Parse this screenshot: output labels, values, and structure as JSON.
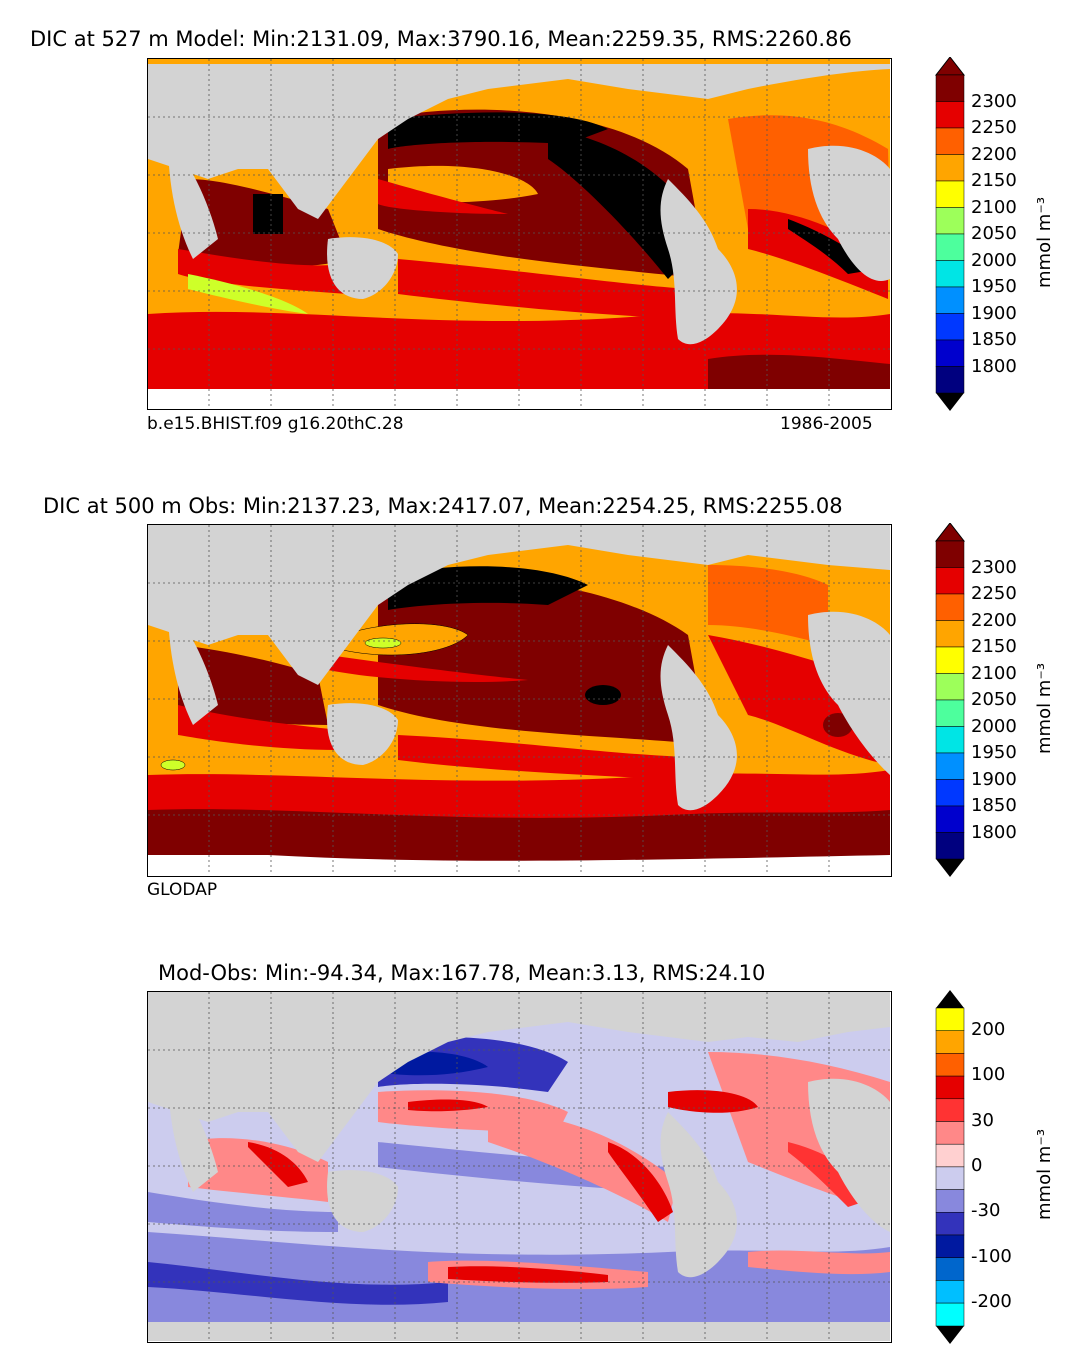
{
  "colors": {
    "land": "#d3d3d3",
    "ice": "#ffffff",
    "grid": "#555555",
    "dic_levels": [
      "#00007f",
      "#0000cd",
      "#0038ff",
      "#0090ff",
      "#00d4ff",
      "#29ffce",
      "#7dff7a",
      "#ceff29",
      "#ffd700",
      "#ffa500",
      "#ff6000",
      "#e50000",
      "#7f0000",
      "#000000"
    ],
    "diff_levels": [
      "#00ffff",
      "#00bfff",
      "#0066cc",
      "#0019a0",
      "#3333bb",
      "#8888dd",
      "#ccccee",
      "#ffd0d0",
      "#ff8888",
      "#ff3333",
      "#e50000",
      "#ff6000",
      "#ffa500",
      "#ffff00"
    ]
  },
  "panels": [
    {
      "id": "model",
      "title": "DIC at 527 m Model: Min:2131.09, Max:3790.16, Mean:2259.35, RMS:2260.86",
      "caption_left": "b.e15.BHIST.f09 g16.20thC.28",
      "caption_right": "1986-2005",
      "colorbar_ticks": [
        "2300",
        "2250",
        "2200",
        "2150",
        "2100",
        "2050",
        "2000",
        "1950",
        "1900",
        "1850",
        "1800"
      ],
      "colorbar_unit": "mmol m⁻³"
    },
    {
      "id": "obs",
      "title": "DIC at 500 m Obs: Min:2137.23, Max:2417.07, Mean:2254.25, RMS:2255.08",
      "caption_left": "GLODAP",
      "caption_right": "",
      "colorbar_ticks": [
        "2300",
        "2250",
        "2200",
        "2150",
        "2100",
        "2050",
        "2000",
        "1950",
        "1900",
        "1850",
        "1800"
      ],
      "colorbar_unit": "mmol m⁻³"
    },
    {
      "id": "diff",
      "title": "Mod-Obs: Min:-94.34, Max:167.78, Mean:3.13, RMS:24.10",
      "caption_left": "",
      "caption_right": "",
      "colorbar_ticks": [
        "200",
        "100",
        "30",
        "0",
        "-30",
        "-100",
        "-200"
      ],
      "colorbar_unit": "mmol m⁻³"
    }
  ]
}
